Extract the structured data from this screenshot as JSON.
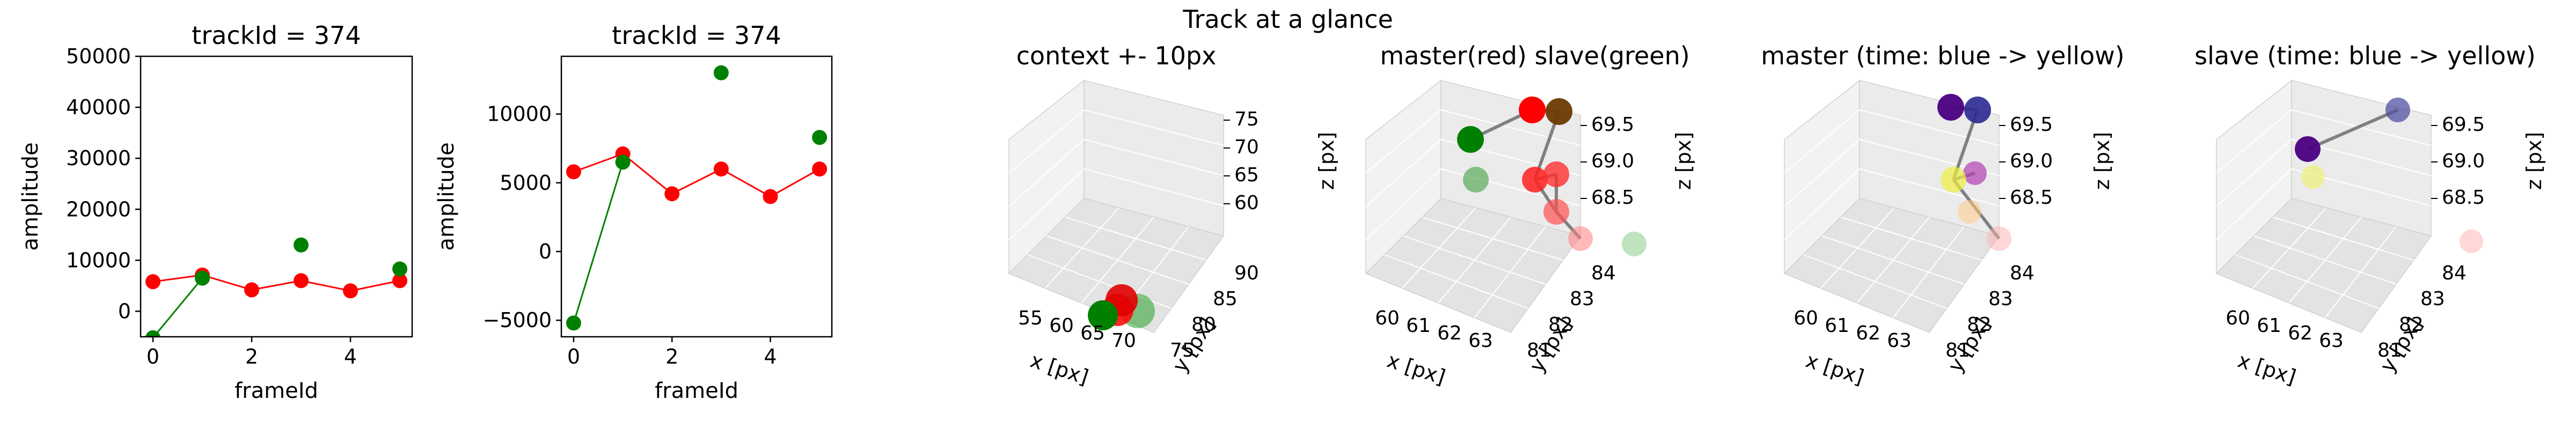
{
  "suptitle": "Track at a glance",
  "colors": {
    "master": "#ff0000",
    "slave": "#008000",
    "line3d": "#808080",
    "pane": "#f2f2f2",
    "grid": "#e6e6e6"
  },
  "chart_data": [
    {
      "type": "line",
      "title": "trackId = 374",
      "xlabel": "frameId",
      "ylabel": "amplitude",
      "xlim": [
        -0.25,
        5.25
      ],
      "ylim": [
        -5000,
        50000
      ],
      "xticks": [
        0,
        2,
        4
      ],
      "yticks": [
        0,
        10000,
        20000,
        30000,
        40000,
        50000
      ],
      "series": [
        {
          "key": "master",
          "color": "#ff0000",
          "x": [
            0,
            1,
            2,
            3,
            4,
            5
          ],
          "y": [
            5800,
            7100,
            4200,
            6000,
            4000,
            6000
          ]
        },
        {
          "key": "slave",
          "color": "#008000",
          "x": [
            0,
            1,
            3,
            5
          ],
          "y": [
            -5200,
            6500,
            13000,
            8300
          ],
          "line_x": [
            0,
            1
          ]
        }
      ]
    },
    {
      "type": "line",
      "title": "trackId = 374",
      "xlabel": "frameId",
      "ylabel": "amplitude",
      "xlim": [
        -0.25,
        5.25
      ],
      "ylim": [
        -6200,
        14200
      ],
      "xticks": [
        0,
        2,
        4
      ],
      "yticks": [
        -5000,
        0,
        5000,
        10000
      ],
      "series": [
        {
          "key": "master",
          "color": "#ff0000",
          "x": [
            0,
            1,
            2,
            3,
            4,
            5
          ],
          "y": [
            5800,
            7100,
            4200,
            6000,
            4000,
            6000
          ]
        },
        {
          "key": "slave",
          "color": "#008000",
          "x": [
            0,
            1,
            3,
            5
          ],
          "y": [
            -5200,
            6500,
            13000,
            8300
          ],
          "line_x": [
            0,
            1
          ]
        }
      ]
    },
    {
      "type": "scatter3d",
      "title": "context +- 10px",
      "xlabel": "x [px]",
      "ylabel": "y [px]",
      "zlabel": "z [px]",
      "xticks": [
        "55",
        "60",
        "65",
        "70"
      ],
      "yticks": [
        "75",
        "80",
        "85",
        "90"
      ],
      "zticks": [
        "60",
        "65",
        "70",
        "75"
      ],
      "points": [
        {
          "color": "#009000",
          "opacity": 0.45
        },
        {
          "color": "#ff0000",
          "opacity": 0.85
        },
        {
          "color": "#e00000",
          "opacity": 0.9
        },
        {
          "color": "#008000",
          "opacity": 1
        }
      ]
    },
    {
      "type": "scatter3d",
      "title": "master(red) slave(green)",
      "xlabel": "x [px]",
      "ylabel": "y [px]",
      "zlabel": "z [px]",
      "xticks": [
        "60",
        "61",
        "62",
        "63"
      ],
      "yticks": [
        "81",
        "82",
        "83",
        "84"
      ],
      "zticks": [
        "68.5",
        "69.0",
        "69.5"
      ],
      "points": [
        {
          "color": "#008000",
          "opacity": 1
        },
        {
          "color": "#ff0000",
          "opacity": 1
        },
        {
          "color": "#6b3a00",
          "opacity": 0.95
        },
        {
          "color": "#40a040",
          "opacity": 0.6
        },
        {
          "color": "#ff2020",
          "opacity": 0.85
        },
        {
          "color": "#ff3030",
          "opacity": 0.8
        },
        {
          "color": "#ff5050",
          "opacity": 0.7
        },
        {
          "color": "#ff8080",
          "opacity": 0.55
        },
        {
          "color": "#70c070",
          "opacity": 0.45
        }
      ]
    },
    {
      "type": "scatter3d",
      "title": "master (time: blue -> yellow)",
      "xlabel": "x [px]",
      "ylabel": "y [px]",
      "zlabel": "z [px]",
      "xticks": [
        "60",
        "61",
        "62",
        "63"
      ],
      "yticks": [
        "81",
        "82",
        "83",
        "84"
      ],
      "zticks": [
        "68.5",
        "69.0",
        "69.5"
      ],
      "points": [
        {
          "color": "#4b0082",
          "opacity": 0.95
        },
        {
          "color": "#2a2a90",
          "opacity": 0.9
        },
        {
          "color": "#b040b0",
          "opacity": 0.7
        },
        {
          "color": "#f0f040",
          "opacity": 0.7
        },
        {
          "color": "#ffcc88",
          "opacity": 0.55
        },
        {
          "color": "#ffb0b0",
          "opacity": 0.5
        }
      ]
    },
    {
      "type": "scatter3d",
      "title": "slave (time: blue -> yellow)",
      "xlabel": "x [px]",
      "ylabel": "y [px]",
      "zlabel": "z [px]",
      "xticks": [
        "60",
        "61",
        "62",
        "63"
      ],
      "yticks": [
        "81",
        "82",
        "83",
        "84"
      ],
      "zticks": [
        "68.5",
        "69.0",
        "69.5"
      ],
      "points": [
        {
          "color": "#4b0082",
          "opacity": 0.95
        },
        {
          "color": "#5050a0",
          "opacity": 0.75
        },
        {
          "color": "#f0f060",
          "opacity": 0.6
        },
        {
          "color": "#ffb0b0",
          "opacity": 0.5
        }
      ]
    }
  ]
}
